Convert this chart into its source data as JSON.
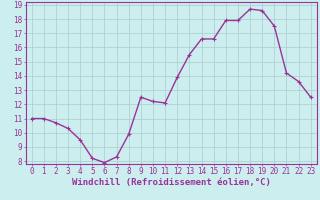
{
  "x": [
    0,
    1,
    2,
    3,
    4,
    5,
    6,
    7,
    8,
    9,
    10,
    11,
    12,
    13,
    14,
    15,
    16,
    17,
    18,
    19,
    20,
    21,
    22,
    23
  ],
  "y": [
    11,
    11,
    10.7,
    10.3,
    9.5,
    8.2,
    7.9,
    8.3,
    9.9,
    12.5,
    12.2,
    12.1,
    13.9,
    15.5,
    16.6,
    16.6,
    17.9,
    17.9,
    18.7,
    18.6,
    17.5,
    14.2,
    13.6,
    12.5
  ],
  "line_color": "#993399",
  "marker": "+",
  "marker_color": "#993399",
  "bg_color": "#cceeee",
  "grid_color": "#aacccc",
  "xlabel": "Windchill (Refroidissement éolien,°C)",
  "xlabel_color": "#993399",
  "tick_color": "#993399",
  "ylim": [
    8,
    19
  ],
  "xlim": [
    -0.5,
    23.5
  ],
  "yticks": [
    8,
    9,
    10,
    11,
    12,
    13,
    14,
    15,
    16,
    17,
    18,
    19
  ],
  "xticks": [
    0,
    1,
    2,
    3,
    4,
    5,
    6,
    7,
    8,
    9,
    10,
    11,
    12,
    13,
    14,
    15,
    16,
    17,
    18,
    19,
    20,
    21,
    22,
    23
  ],
  "tick_fontsize": 5.5,
  "xlabel_fontsize": 6.5,
  "linewidth": 1.0,
  "markersize": 3
}
